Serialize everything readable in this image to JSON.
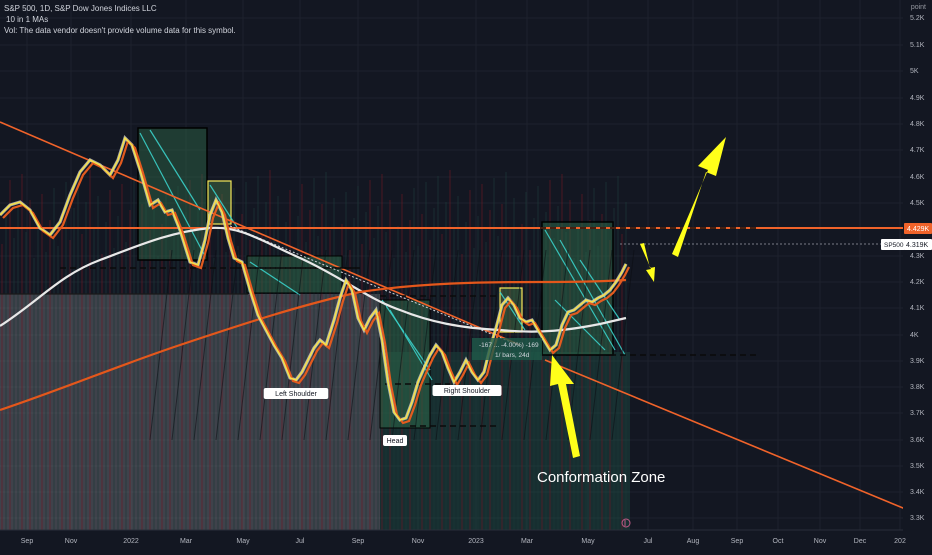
{
  "header": {
    "symbol_line": "S&P 500, 1D, S&P Dow Jones Indices LLC",
    "ma_line": "10 in 1 MAs",
    "vol_line": "Vol: The data vendor doesn't provide volume data for this symbol."
  },
  "price_axis": {
    "unit": "point",
    "ticks": [
      "5.2K",
      "5.1K",
      "5K",
      "4.9K",
      "4.8K",
      "4.7K",
      "4.6K",
      "4.5K",
      "4.3K",
      "4.2K",
      "4.1K",
      "4K",
      "3.9K",
      "3.8K",
      "3.7K",
      "3.6K",
      "3.5K",
      "3.4K",
      "3.3K"
    ],
    "level_badge": "4.429K",
    "symbol_badge_name": "SP500",
    "symbol_badge_value": "4.319K"
  },
  "time_axis": {
    "ticks": [
      "Sep",
      "Nov",
      "2022",
      "Mar",
      "May",
      "Jul",
      "Sep",
      "Nov",
      "2023",
      "Mar",
      "May",
      "Jul",
      "Aug",
      "Sep",
      "Oct",
      "Nov",
      "Dec",
      "202"
    ]
  },
  "annotations": {
    "left_shoulder": "Left Shoulder",
    "head": "Head",
    "right_shoulder": "Right Shoulder",
    "measure_line1": "-167 ... -4.00%) -169",
    "measure_line2": "1/ bars, 24d",
    "zone_label": "Conformation Zone",
    "flag_icon": "flag-icon"
  },
  "colors": {
    "background": "#131722",
    "price_line": "#f5e14a",
    "fast_ma": "#e35b1f",
    "slow_ma": "#e8e8e8",
    "long_ma": "#e4571b",
    "resistance": "#f0632a",
    "box_fill": "#2e6b4a",
    "arrow": "#ffff1a",
    "teal": "#3ad0c9"
  },
  "chart_data": {
    "type": "line",
    "title": "S&P 500, 1D, S&P Dow Jones Indices LLC",
    "yunit": "point",
    "ylim": [
      3250,
      5250
    ],
    "grid": true,
    "series": [
      {
        "name": "S&P 500",
        "x": [
          "2021-09",
          "2021-10",
          "2021-11",
          "2021-12",
          "2022-01",
          "2022-02",
          "2022-03",
          "2022-04",
          "2022-05",
          "2022-06",
          "2022-07",
          "2022-08",
          "2022-09",
          "2022-10",
          "2022-11",
          "2022-12",
          "2023-01",
          "2023-02",
          "2023-03",
          "2023-04",
          "2023-05",
          "2023-06"
        ],
        "values": [
          4520,
          4420,
          4680,
          4740,
          4500,
          4380,
          4560,
          4260,
          4000,
          3780,
          4000,
          4280,
          3780,
          3620,
          3980,
          3860,
          4020,
          4150,
          3930,
          4100,
          4150,
          4290
        ]
      }
    ],
    "levels": [
      {
        "value": 4429,
        "label": "4.429K"
      },
      {
        "value": 4319,
        "label": "4.319K"
      }
    ]
  }
}
